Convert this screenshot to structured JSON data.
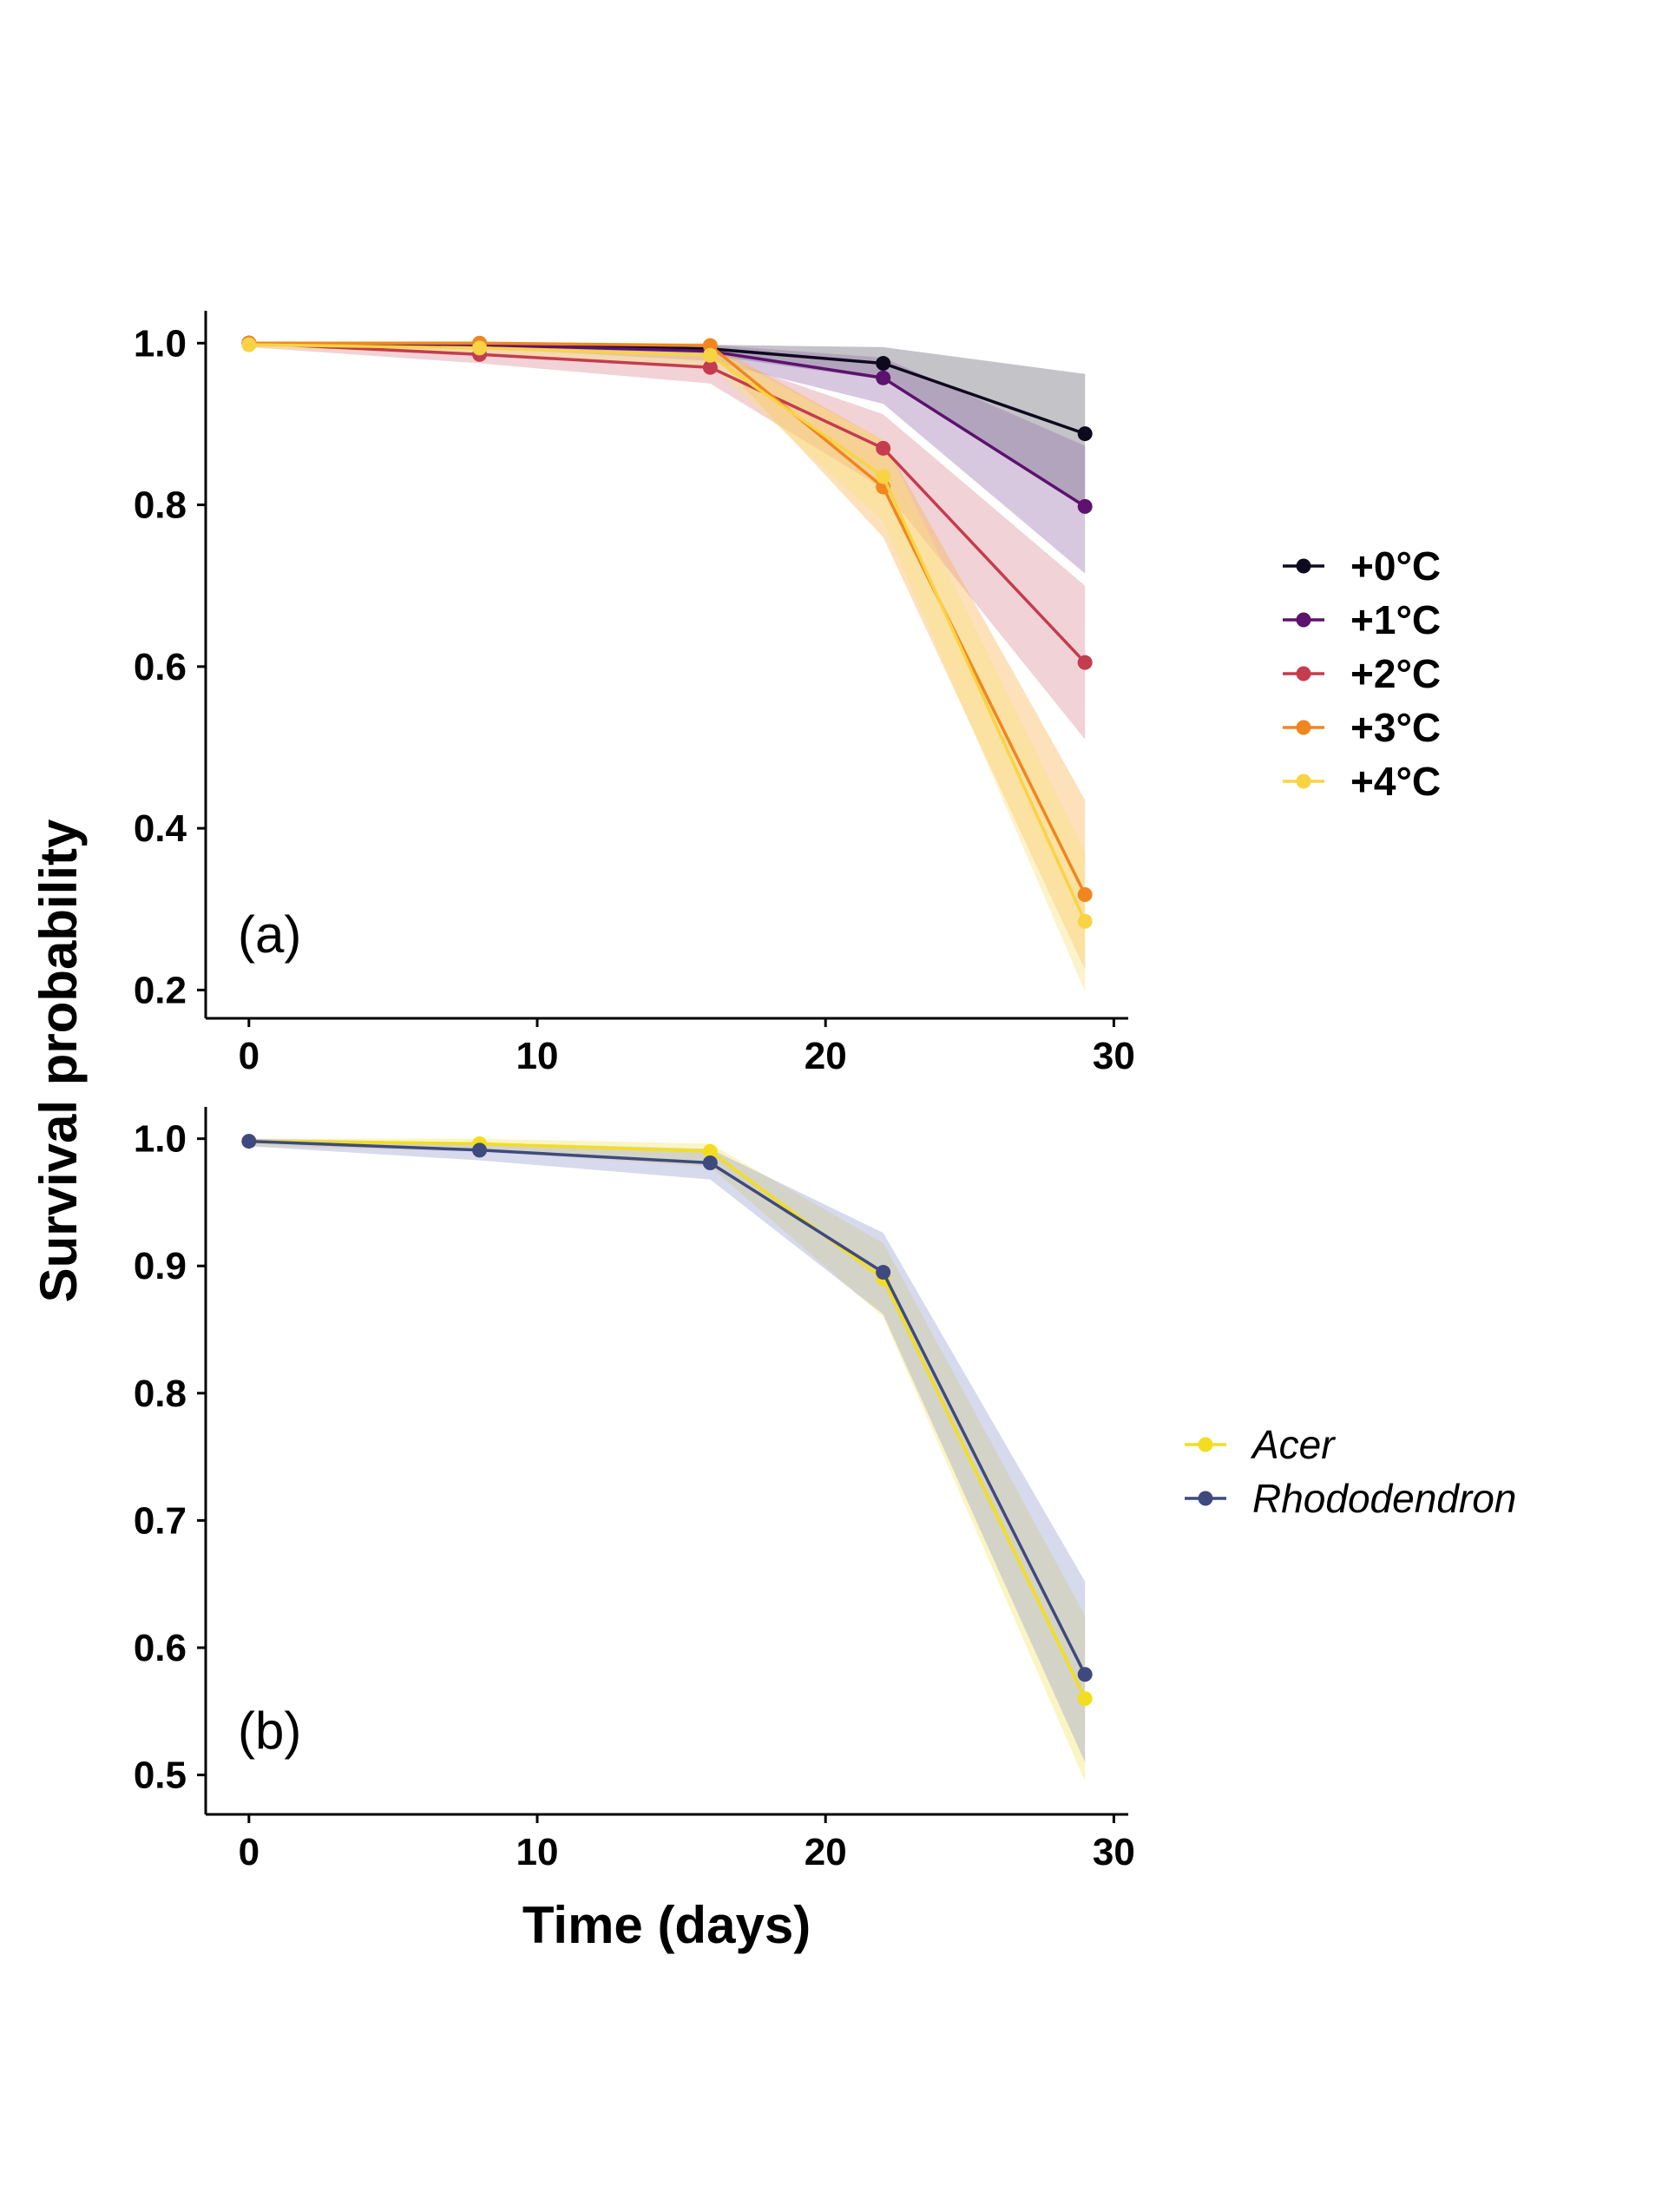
{
  "figure": {
    "ylabel": "Survival probability",
    "xlabel": "Time (days)"
  },
  "chart_data": [
    {
      "type": "line",
      "panel_label": "(a)",
      "x": [
        0,
        8,
        16,
        22,
        29
      ],
      "xlim": [
        -1.5,
        30.5
      ],
      "ylim": [
        0.165,
        1.04
      ],
      "xticks": [
        0,
        10,
        20,
        30
      ],
      "yticks": [
        0.2,
        0.4,
        0.6,
        0.8,
        1.0
      ],
      "ytick_labels": [
        "0.2",
        "0.4",
        "0.6",
        "0.8",
        "1.0"
      ],
      "legend_position": "right",
      "legend_style": "bold",
      "grid": false,
      "series": [
        {
          "name": "+0°C",
          "color": "#0d0a1e",
          "band_color": "#6b6a74",
          "values": [
            1.0,
            0.998,
            0.993,
            0.975,
            0.888
          ],
          "lower": [
            1.0,
            0.995,
            0.985,
            0.955,
            0.8
          ],
          "upper": [
            1.0,
            1.0,
            0.998,
            0.995,
            0.962
          ]
        },
        {
          "name": "+1°C",
          "color": "#5c126e",
          "band_color": "#9a76ae",
          "values": [
            1.0,
            0.998,
            0.99,
            0.957,
            0.798
          ],
          "lower": [
            1.0,
            0.994,
            0.978,
            0.925,
            0.715
          ],
          "upper": [
            1.0,
            1.0,
            0.998,
            0.982,
            0.873
          ]
        },
        {
          "name": "+2°C",
          "color": "#c43c4e",
          "band_color": "#dc8f99",
          "values": [
            1.0,
            0.986,
            0.97,
            0.87,
            0.605
          ],
          "lower": [
            0.995,
            0.975,
            0.95,
            0.82,
            0.51
          ],
          "upper": [
            1.0,
            0.996,
            0.986,
            0.912,
            0.7
          ]
        },
        {
          "name": "+3°C",
          "color": "#f08620",
          "band_color": "#f7b455",
          "values": [
            1.0,
            1.0,
            0.997,
            0.822,
            0.318
          ],
          "lower": [
            1.0,
            0.996,
            0.99,
            0.76,
            0.225
          ],
          "upper": [
            1.0,
            1.0,
            1.0,
            0.88,
            0.435
          ]
        },
        {
          "name": "+4°C",
          "color": "#f9d343",
          "band_color": "#fbe07e",
          "values": [
            0.998,
            0.994,
            0.985,
            0.835,
            0.285
          ],
          "lower": [
            0.994,
            0.986,
            0.972,
            0.78,
            0.198
          ],
          "upper": [
            1.0,
            1.0,
            0.994,
            0.88,
            0.37
          ]
        }
      ]
    },
    {
      "type": "line",
      "panel_label": "(b)",
      "x": [
        0,
        8,
        16,
        22,
        29
      ],
      "xlim": [
        -1.5,
        30.5
      ],
      "ylim": [
        0.469,
        1.025
      ],
      "xticks": [
        0,
        10,
        20,
        30
      ],
      "yticks": [
        0.5,
        0.6,
        0.7,
        0.8,
        0.9,
        1.0
      ],
      "ytick_labels": [
        "0.5",
        "0.6",
        "0.7",
        "0.8",
        "0.9",
        "1.0"
      ],
      "legend_position": "right",
      "legend_style": "italic",
      "grid": false,
      "series": [
        {
          "name": "Acer",
          "color": "#f2de1f",
          "band_color": "#f5e76b",
          "values": [
            0.998,
            0.996,
            0.99,
            0.89,
            0.56
          ],
          "lower": [
            0.994,
            0.99,
            0.978,
            0.86,
            0.495
          ],
          "upper": [
            1.0,
            1.0,
            0.996,
            0.918,
            0.625
          ]
        },
        {
          "name": "Rhododendron",
          "color": "#3e4a7e",
          "band_color": "#9aa1cf",
          "values": [
            0.998,
            0.991,
            0.981,
            0.895,
            0.579
          ],
          "lower": [
            0.994,
            0.983,
            0.968,
            0.862,
            0.51
          ],
          "upper": [
            1.0,
            0.997,
            0.992,
            0.926,
            0.652
          ]
        }
      ]
    }
  ]
}
